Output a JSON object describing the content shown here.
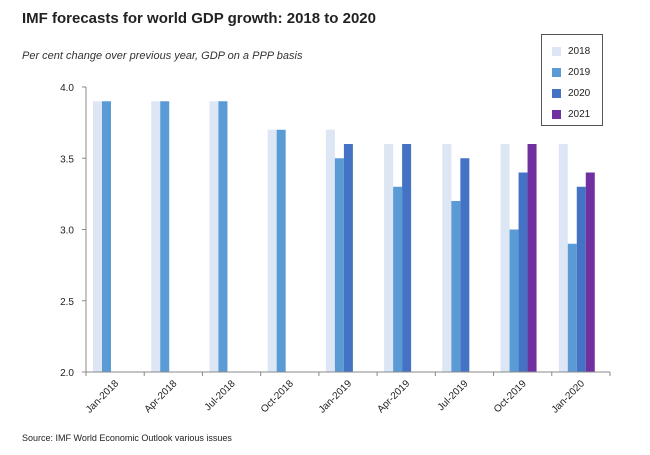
{
  "chart_data": {
    "type": "bar",
    "title": "IMF forecasts for world GDP growth: 2018 to 2020",
    "subtitle": "Per cent change over previous year, GDP on a PPP basis",
    "source": "Source: IMF  World Economic Outlook various issues",
    "xlabel": "",
    "ylabel": "",
    "ylim": [
      2.0,
      4.0
    ],
    "yticks": [
      "2.0",
      "2.5",
      "3.0",
      "3.5",
      "4.0"
    ],
    "categories": [
      "Jan-2018",
      "Apr-2018",
      "Jul-2018",
      "Oct-2018",
      "Jan-2019",
      "Apr-2019",
      "Jul-2019",
      "Oct-2019",
      "Jan-2020"
    ],
    "series": [
      {
        "name": "2018",
        "color": "#dde6f5",
        "values": [
          3.9,
          3.9,
          3.9,
          3.7,
          3.7,
          3.6,
          3.6,
          3.6,
          3.6
        ]
      },
      {
        "name": "2019",
        "color": "#5b9bd5",
        "values": [
          3.9,
          3.9,
          3.9,
          3.7,
          3.5,
          3.3,
          3.2,
          3.0,
          2.9
        ]
      },
      {
        "name": "2020",
        "color": "#4472c4",
        "values": [
          null,
          null,
          null,
          null,
          3.6,
          3.6,
          3.5,
          3.4,
          3.3
        ]
      },
      {
        "name": "2021",
        "color": "#7030a0",
        "values": [
          null,
          null,
          null,
          null,
          null,
          null,
          null,
          3.6,
          3.4
        ]
      }
    ],
    "legend": "top-right",
    "grid": false
  }
}
